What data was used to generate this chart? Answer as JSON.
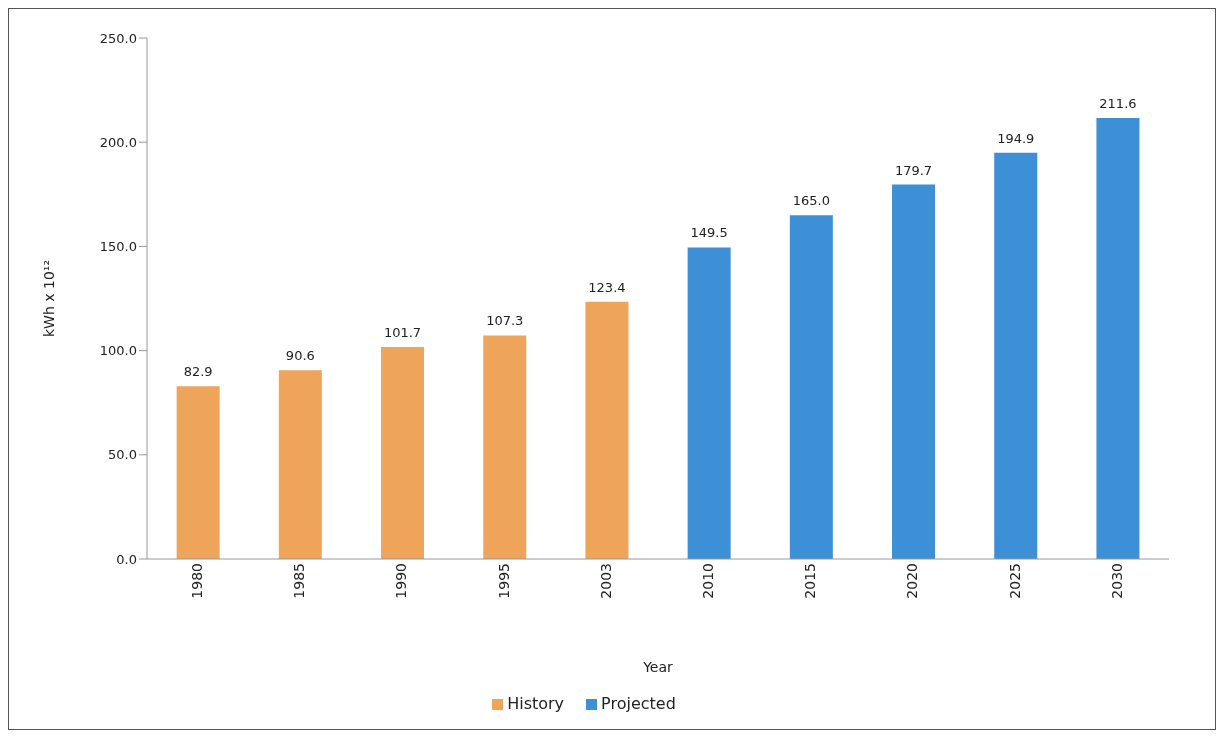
{
  "chart_data": {
    "type": "bar",
    "stacked": true,
    "categories": [
      "1980",
      "1985",
      "1990",
      "1995",
      "2003",
      "2010",
      "2015",
      "2020",
      "2025",
      "2030"
    ],
    "series": [
      {
        "name": "History",
        "color": "#eea55a",
        "values": [
          82.9,
          90.6,
          101.7,
          107.3,
          123.4,
          null,
          null,
          null,
          null,
          null
        ],
        "value_labels": [
          "82.9",
          "90.6",
          "101.7",
          "107.3",
          "123.4",
          null,
          null,
          null,
          null,
          null
        ]
      },
      {
        "name": "Projected",
        "color": "#3d8fd6",
        "values": [
          null,
          null,
          null,
          null,
          null,
          149.5,
          165.0,
          179.7,
          194.9,
          211.6
        ],
        "value_labels": [
          null,
          null,
          null,
          null,
          null,
          "149.5",
          "165.0",
          "179.7",
          "194.9",
          "211.6"
        ]
      }
    ],
    "xlabel": "Year",
    "ylabel": "kWh x 10¹²",
    "ylim": [
      0,
      250
    ],
    "yticks": [
      {
        "value": 0,
        "label": "0.0"
      },
      {
        "value": 50,
        "label": "50.0"
      },
      {
        "value": 100,
        "label": "100.0"
      },
      {
        "value": 150,
        "label": "150.0"
      },
      {
        "value": 200,
        "label": "200.0"
      },
      {
        "value": 250,
        "label": "250.0"
      }
    ],
    "legend": "bottom"
  }
}
